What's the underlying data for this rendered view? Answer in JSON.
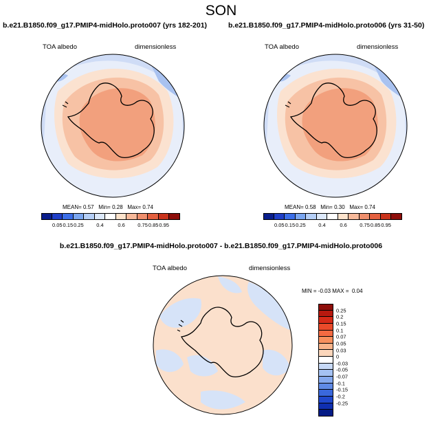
{
  "season": "SON",
  "panel_left": {
    "title": "b.e21.B1850.f09_g17.PMIP4-midHolo.proto007 (yrs 182-201)",
    "variable": "TOA albedo",
    "units": "dimensionless",
    "stats": {
      "mean_label": "MEAN=",
      "mean": "0.57",
      "min_label": "Min=",
      "min": "0.28",
      "max_label": "Max=",
      "max": "0.74"
    }
  },
  "panel_right": {
    "title": "b.e21.B1850.f09_g17.PMIP4-midHolo.proto006 (yrs 31-50)",
    "variable": "TOA albedo",
    "units": "dimensionless",
    "stats": {
      "mean_label": "MEAN=",
      "mean": "0.58",
      "min_label": "Min=",
      "min": "0.30",
      "max_label": "Max=",
      "max": "0.74"
    }
  },
  "panel_diff": {
    "title": "b.e21.B1850.f09_g17.PMIP4-midHolo.proto007 - b.e21.B1850.f09_g17.PMIP4-midHolo.proto006",
    "variable": "TOA albedo",
    "units": "dimensionless",
    "stats": {
      "min_label": "MIN =",
      "min": "-0.03",
      "max_label": "MAX =",
      "max": "0.04"
    }
  },
  "colorbar_abs": {
    "labels": [
      "0.05",
      "0.15",
      "0.25",
      "0.4",
      "0.6",
      "0.75",
      "0.85",
      "0.95"
    ],
    "colors": [
      "#0a1e8c",
      "#1f3fc8",
      "#3b6ee8",
      "#7aa6f0",
      "#b5cff7",
      "#dde9fb",
      "#ffffff",
      "#fde3cc",
      "#f7b99a",
      "#ef8f6d",
      "#e4603f",
      "#c9331c",
      "#8e0e0a"
    ]
  },
  "colorbar_diff": {
    "labels": [
      "0.25",
      "0.2",
      "0.15",
      "0.1",
      "0.07",
      "0.05",
      "0.03",
      "0",
      "-0.03",
      "-0.05",
      "-0.07",
      "-0.1",
      "-0.15",
      "-0.2",
      "-0.25"
    ],
    "colors": [
      "#8e0e0a",
      "#b8190f",
      "#d62a18",
      "#ea4a2a",
      "#f36a42",
      "#f7905e",
      "#f9b48b",
      "#fbd6bb",
      "#ffffff",
      "#c7d9f7",
      "#a5c2f3",
      "#85a9ee",
      "#5f8ae6",
      "#3a68dc",
      "#2048cc",
      "#0f2fb0",
      "#051c86"
    ]
  },
  "map_colors": {
    "ice_core": "#f2a07d",
    "ice_ring": "#f7c2a5",
    "ocean_near": "#fbe2d0",
    "ocean_mid": "#e8eefa",
    "ocean_far": "#cfdcf6",
    "patch": "#a9c2f0",
    "diff_pos": "#fbe0cc",
    "diff_neg": "#d6e3f8"
  }
}
